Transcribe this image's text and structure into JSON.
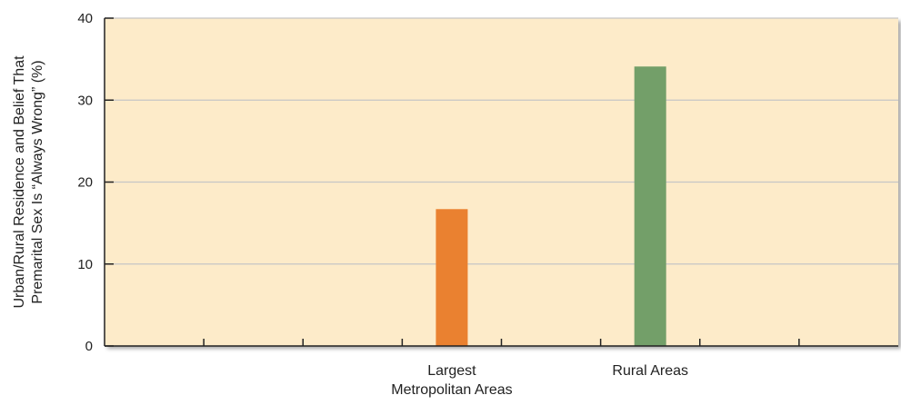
{
  "chart_data": {
    "type": "bar",
    "categories": [
      "Largest Metropolitan Areas",
      "Rural Areas"
    ],
    "category_label_lines": [
      [
        "Largest",
        "Metropolitan Areas"
      ],
      [
        "Rural Areas"
      ]
    ],
    "values": [
      16.7,
      34.1
    ],
    "colors": [
      "#ea8130",
      "#739f69"
    ],
    "title": "",
    "xlabel": "",
    "ylabel_lines": [
      "Urban/Rural Residence and Belief That",
      "Premarital Sex Is “Always Wrong” (%)"
    ],
    "ylim": [
      0,
      40
    ],
    "yticks": [
      0,
      10,
      20,
      30,
      40
    ],
    "grid": true,
    "plot_background": "#fdebc9",
    "gridline_color": "#c6c6c6"
  }
}
